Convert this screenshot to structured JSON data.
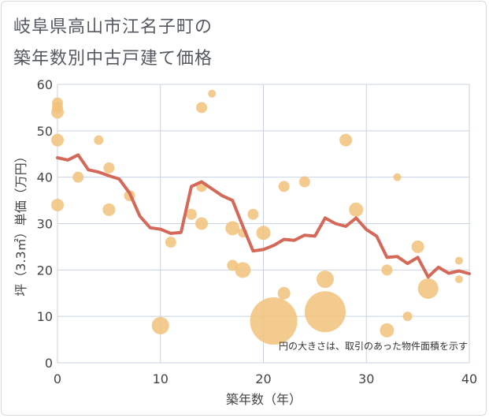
{
  "chart_data": {
    "type": "scatter",
    "title_line1": "岐阜県高山市江名子町の",
    "title_line2": "築年数別中古戸建て価格",
    "xlabel": "築年数（年）",
    "ylabel": "坪（3.3㎡）単価（万円）",
    "xlim": [
      0,
      40
    ],
    "ylim": [
      0,
      60
    ],
    "xticks": [
      0,
      10,
      20,
      30,
      40
    ],
    "yticks": [
      0,
      10,
      20,
      30,
      40,
      50,
      60
    ],
    "grid": true,
    "note": "円の大きさは、取引のあった物件面積を示す",
    "colors": {
      "bubble": "#f2c27a",
      "line": "#d4695a"
    },
    "points": [
      {
        "x": 0,
        "y": 56,
        "r": 7
      },
      {
        "x": 0,
        "y": 55,
        "r": 7
      },
      {
        "x": 0,
        "y": 54,
        "r": 8
      },
      {
        "x": 0,
        "y": 48,
        "r": 8
      },
      {
        "x": 0,
        "y": 34,
        "r": 8
      },
      {
        "x": 2,
        "y": 40,
        "r": 7
      },
      {
        "x": 4,
        "y": 48,
        "r": 6
      },
      {
        "x": 5,
        "y": 42,
        "r": 7
      },
      {
        "x": 5,
        "y": 33,
        "r": 8
      },
      {
        "x": 7,
        "y": 36,
        "r": 7
      },
      {
        "x": 10,
        "y": 8,
        "r": 11
      },
      {
        "x": 11,
        "y": 26,
        "r": 7
      },
      {
        "x": 13,
        "y": 32,
        "r": 7
      },
      {
        "x": 14,
        "y": 55,
        "r": 7
      },
      {
        "x": 14,
        "y": 38,
        "r": 7
      },
      {
        "x": 14,
        "y": 30,
        "r": 8
      },
      {
        "x": 15,
        "y": 58,
        "r": 5
      },
      {
        "x": 17,
        "y": 29,
        "r": 9
      },
      {
        "x": 17,
        "y": 21,
        "r": 7
      },
      {
        "x": 18,
        "y": 20,
        "r": 10
      },
      {
        "x": 18,
        "y": 28,
        "r": 6
      },
      {
        "x": 19,
        "y": 32,
        "r": 7
      },
      {
        "x": 20,
        "y": 28,
        "r": 9
      },
      {
        "x": 21,
        "y": 9,
        "r": 30
      },
      {
        "x": 22,
        "y": 38,
        "r": 7
      },
      {
        "x": 22,
        "y": 15,
        "r": 8
      },
      {
        "x": 24,
        "y": 39,
        "r": 7
      },
      {
        "x": 26,
        "y": 11,
        "r": 26
      },
      {
        "x": 26,
        "y": 18,
        "r": 11
      },
      {
        "x": 28,
        "y": 48,
        "r": 8
      },
      {
        "x": 29,
        "y": 33,
        "r": 9
      },
      {
        "x": 32,
        "y": 7,
        "r": 9
      },
      {
        "x": 32,
        "y": 20,
        "r": 7
      },
      {
        "x": 33,
        "y": 40,
        "r": 5
      },
      {
        "x": 34,
        "y": 10,
        "r": 6
      },
      {
        "x": 35,
        "y": 25,
        "r": 8
      },
      {
        "x": 36,
        "y": 16,
        "r": 13
      },
      {
        "x": 39,
        "y": 22,
        "r": 5
      },
      {
        "x": 39,
        "y": 18,
        "r": 5
      }
    ],
    "line": {
      "x": [
        0,
        1,
        2,
        3,
        4,
        5,
        6,
        7,
        8,
        9,
        10,
        11,
        12,
        13,
        14,
        15,
        16,
        17,
        18,
        19,
        20,
        21,
        22,
        23,
        24,
        25,
        26,
        27,
        28,
        29,
        30,
        31,
        32,
        33,
        34,
        35,
        36,
        37,
        38,
        39,
        40
      ],
      "y": [
        44.2,
        43.7,
        44.8,
        41.6,
        41.1,
        40.3,
        39.6,
        36.6,
        31.6,
        29.1,
        28.8,
        27.9,
        28.1,
        38.0,
        39.0,
        37.5,
        36.0,
        35.0,
        29.4,
        24.1,
        24.4,
        25.3,
        26.6,
        26.4,
        27.5,
        27.3,
        31.2,
        30.0,
        29.4,
        31.2,
        28.7,
        27.3,
        22.7,
        22.9,
        21.4,
        22.7,
        18.5,
        20.6,
        19.3,
        19.8,
        19.2
      ]
    }
  }
}
